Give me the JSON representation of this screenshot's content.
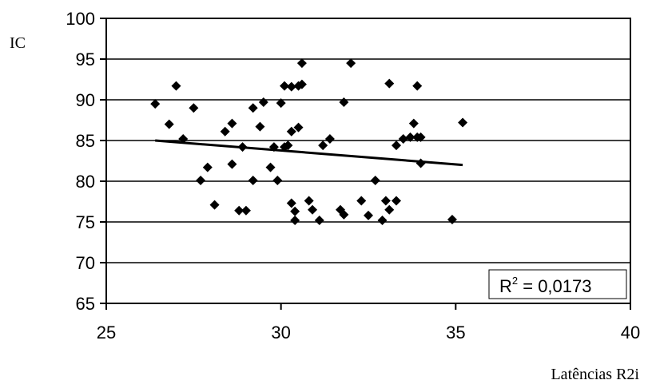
{
  "chart_data": {
    "type": "scatter",
    "xlabel": "Latências R2i",
    "ylabel": "IC",
    "xlim": [
      25,
      40
    ],
    "ylim": [
      65,
      100
    ],
    "x_ticks": [
      "25",
      "30",
      "35",
      "40"
    ],
    "y_ticks": [
      "100",
      "95",
      "90",
      "85",
      "80",
      "75",
      "70",
      "65"
    ],
    "grid": "horizontal",
    "annotation": {
      "r2_prefix": "R",
      "r2_sup": "2",
      "r2_value": " = 0,0173"
    },
    "trendline": {
      "x": [
        26.4,
        35.2
      ],
      "y": [
        85.0,
        82.0
      ]
    },
    "points": [
      [
        26.4,
        89.5
      ],
      [
        26.8,
        87.0
      ],
      [
        27.0,
        91.7
      ],
      [
        27.2,
        85.2
      ],
      [
        27.5,
        89.0
      ],
      [
        27.7,
        80.1
      ],
      [
        27.9,
        81.7
      ],
      [
        28.1,
        77.1
      ],
      [
        28.4,
        86.1
      ],
      [
        28.6,
        82.1
      ],
      [
        28.6,
        87.1
      ],
      [
        28.8,
        76.4
      ],
      [
        28.9,
        84.2
      ],
      [
        29.0,
        76.4
      ],
      [
        29.2,
        80.1
      ],
      [
        29.2,
        89.0
      ],
      [
        29.4,
        86.7
      ],
      [
        29.5,
        89.7
      ],
      [
        29.7,
        81.7
      ],
      [
        29.8,
        84.2
      ],
      [
        29.9,
        80.1
      ],
      [
        30.0,
        89.6
      ],
      [
        30.1,
        91.7
      ],
      [
        30.1,
        84.2
      ],
      [
        30.2,
        84.4
      ],
      [
        30.3,
        86.1
      ],
      [
        30.3,
        91.6
      ],
      [
        30.3,
        77.3
      ],
      [
        30.4,
        76.3
      ],
      [
        30.4,
        75.2
      ],
      [
        30.5,
        86.6
      ],
      [
        30.5,
        91.7
      ],
      [
        30.6,
        91.9
      ],
      [
        30.6,
        94.5
      ],
      [
        30.8,
        77.6
      ],
      [
        30.9,
        76.5
      ],
      [
        31.1,
        75.2
      ],
      [
        31.2,
        84.4
      ],
      [
        31.4,
        85.2
      ],
      [
        31.7,
        76.5
      ],
      [
        31.8,
        89.7
      ],
      [
        31.8,
        75.9
      ],
      [
        32.0,
        94.5
      ],
      [
        32.3,
        77.6
      ],
      [
        32.5,
        75.8
      ],
      [
        32.7,
        80.1
      ],
      [
        32.9,
        75.2
      ],
      [
        33.0,
        77.6
      ],
      [
        33.1,
        92.0
      ],
      [
        33.1,
        76.5
      ],
      [
        33.3,
        84.4
      ],
      [
        33.3,
        77.6
      ],
      [
        33.5,
        85.2
      ],
      [
        33.7,
        85.4
      ],
      [
        33.8,
        87.1
      ],
      [
        33.9,
        91.7
      ],
      [
        33.9,
        85.4
      ],
      [
        34.0,
        85.4
      ],
      [
        34.0,
        82.2
      ],
      [
        34.9,
        75.3
      ],
      [
        35.2,
        87.2
      ]
    ]
  }
}
